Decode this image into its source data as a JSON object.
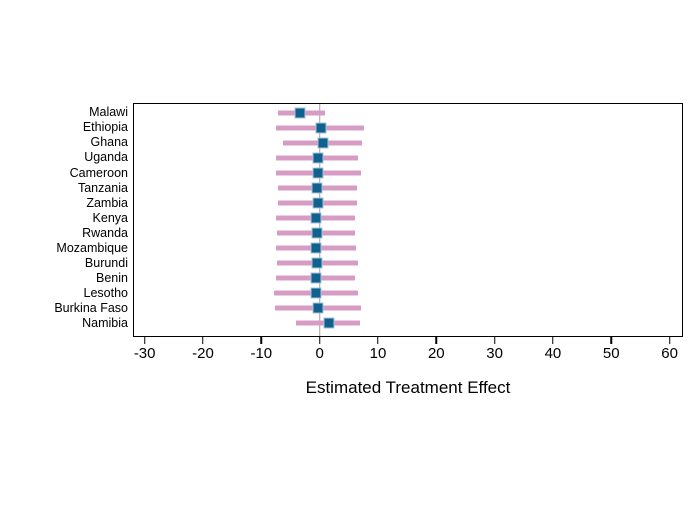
{
  "chart_data": {
    "type": "scatter",
    "variant": "forest-plot: point estimates with horizontal confidence-interval bars",
    "xlabel": "Estimated Treatment Effect",
    "ylabel": "",
    "xlim": [
      -32,
      62.3
    ],
    "x_ticks": [
      -30,
      -20,
      -10,
      0,
      10,
      20,
      30,
      40,
      50,
      60
    ],
    "zero_line_x": 0,
    "grid": false,
    "legend": "none",
    "categories": [
      "Malawi",
      "Ethiopia",
      "Ghana",
      "Uganda",
      "Cameroon",
      "Tanzania",
      "Zambia",
      "Kenya",
      "Rwanda",
      "Mozambique",
      "Burundi",
      "Benin",
      "Lesotho",
      "Burkina Faso",
      "Namibia"
    ],
    "estimates": [
      -3.4,
      0.2,
      0.5,
      -0.3,
      -0.3,
      -0.5,
      -0.4,
      -0.6,
      -0.5,
      -0.7,
      -0.5,
      -0.6,
      -0.6,
      -0.3,
      1.5
    ],
    "ci_lower": [
      -7.3,
      -7.5,
      -6.3,
      -7.5,
      -7.6,
      -7.3,
      -7.3,
      -7.6,
      -7.4,
      -7.6,
      -7.4,
      -7.6,
      -7.9,
      -7.7,
      -4.2
    ],
    "ci_upper": [
      0.9,
      7.5,
      7.3,
      6.6,
      7.0,
      6.3,
      6.3,
      6.1,
      6.0,
      6.2,
      6.5,
      6.1,
      6.5,
      7.0,
      6.9
    ],
    "colors": {
      "marker": "#11618e",
      "marker_outline": "#a4c3d9",
      "ci_bar": "#d69cc4",
      "zero_line": "#a0a0a0",
      "frame": "#000000"
    }
  }
}
